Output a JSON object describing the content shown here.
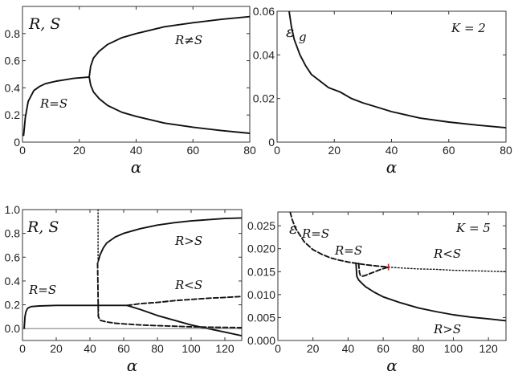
{
  "chart_data": [
    {
      "type": "line",
      "xlabel": "α",
      "xlim": [
        0,
        80
      ],
      "ylim": [
        0,
        1.0
      ],
      "xticks": [
        0,
        20,
        40,
        60,
        80
      ],
      "yticks": [
        0,
        0.2,
        0.4,
        0.6,
        0.8
      ],
      "ytick_labels": [
        "0",
        "0.2",
        "0.4",
        "0.6",
        "0.8"
      ],
      "annotations": [
        "R, S",
        "R=S",
        "R≠S"
      ],
      "series": [
        {
          "style": "solid",
          "x": [
            0.4,
            1,
            2,
            4,
            6,
            8,
            10,
            12,
            15,
            18,
            21,
            23.5
          ],
          "y": [
            0.05,
            0.18,
            0.3,
            0.38,
            0.41,
            0.43,
            0.44,
            0.45,
            0.46,
            0.47,
            0.475,
            0.48
          ]
        },
        {
          "style": "solid",
          "x": [
            23.5,
            24,
            25,
            27,
            30,
            35,
            40,
            50,
            60,
            70,
            80
          ],
          "y": [
            0.48,
            0.56,
            0.62,
            0.67,
            0.72,
            0.77,
            0.8,
            0.85,
            0.88,
            0.905,
            0.925
          ]
        },
        {
          "style": "solid",
          "x": [
            23.5,
            24,
            25,
            27,
            30,
            35,
            40,
            50,
            60,
            70,
            80
          ],
          "y": [
            0.48,
            0.42,
            0.37,
            0.32,
            0.27,
            0.22,
            0.19,
            0.14,
            0.11,
            0.085,
            0.065
          ]
        }
      ]
    },
    {
      "type": "line",
      "xlabel": "α",
      "xlim": [
        0,
        80
      ],
      "ylim": [
        0,
        0.06
      ],
      "xticks": [
        0,
        20,
        40,
        60,
        80
      ],
      "yticks": [
        0,
        0.02,
        0.04,
        0.06
      ],
      "ytick_labels": [
        "0",
        "0.02",
        "0.04",
        "0.06"
      ],
      "annotations": [
        "ε",
        "g",
        "K = 2"
      ],
      "series": [
        {
          "style": "solid",
          "x": [
            4.2,
            5,
            6,
            8,
            10,
            12,
            15,
            18,
            22,
            26,
            30,
            35,
            40,
            50,
            60,
            70,
            80
          ],
          "y": [
            0.06,
            0.053,
            0.047,
            0.04,
            0.035,
            0.031,
            0.028,
            0.025,
            0.023,
            0.02,
            0.018,
            0.016,
            0.014,
            0.011,
            0.0092,
            0.0078,
            0.0066
          ]
        }
      ]
    },
    {
      "type": "line",
      "xlabel": "α",
      "xlim": [
        0,
        130
      ],
      "ylim": [
        -0.1,
        1.0
      ],
      "xticks": [
        0,
        20,
        40,
        60,
        80,
        100,
        120
      ],
      "yticks": [
        0,
        0.2,
        0.4,
        0.6,
        0.8,
        1.0
      ],
      "ytick_labels": [
        "0.0",
        "0.2",
        "0.4",
        "0.6",
        "0.8",
        "1.0"
      ],
      "annotations": [
        "R, S",
        "R=S",
        "R>S",
        "R<S"
      ],
      "series": [
        {
          "style": "solid",
          "x": [
            1,
            1.5,
            2,
            3,
            5,
            10,
            20,
            30,
            40,
            50,
            62
          ],
          "y": [
            0.0,
            0.1,
            0.14,
            0.17,
            0.185,
            0.19,
            0.195,
            0.195,
            0.195,
            0.195,
            0.195
          ]
        },
        {
          "style": "solid",
          "x": [
            62,
            70,
            80,
            90,
            100,
            110,
            120,
            130
          ],
          "y": [
            0.195,
            0.16,
            0.11,
            0.07,
            0.03,
            0.0,
            -0.03,
            -0.06
          ]
        },
        {
          "style": "dashed",
          "x": [
            62,
            70,
            80,
            90,
            100,
            110,
            120,
            130
          ],
          "y": [
            0.195,
            0.21,
            0.22,
            0.235,
            0.245,
            0.255,
            0.262,
            0.27
          ]
        },
        {
          "style": "solid",
          "x": [
            45,
            46,
            48,
            50,
            55,
            60,
            70,
            80,
            90,
            100,
            110,
            120,
            130
          ],
          "y": [
            0.57,
            0.62,
            0.68,
            0.72,
            0.77,
            0.8,
            0.84,
            0.87,
            0.89,
            0.905,
            0.915,
            0.925,
            0.93
          ]
        },
        {
          "style": "dashed",
          "x": [
            44.5,
            45,
            46,
            50,
            55,
            60,
            70,
            80,
            90,
            100,
            110,
            120,
            130
          ],
          "y": [
            0.55,
            0.1,
            0.07,
            0.055,
            0.045,
            0.04,
            0.03,
            0.025,
            0.02,
            0.015,
            0.012,
            0.01,
            0.008
          ]
        },
        {
          "style": "dotted",
          "x": [
            44.8,
            44.8
          ],
          "y": [
            1.0,
            0.55
          ]
        },
        {
          "style": "dotted",
          "x": [
            44.8,
            44.8
          ],
          "y": [
            0.195,
            0.1
          ]
        },
        {
          "style": "thin",
          "x": [
            0,
            130
          ],
          "y": [
            0,
            0
          ]
        }
      ]
    },
    {
      "type": "line",
      "xlabel": "α",
      "xlim": [
        0,
        130
      ],
      "ylim": [
        0,
        0.028
      ],
      "xticks": [
        0,
        20,
        40,
        60,
        80,
        100,
        120
      ],
      "yticks": [
        0,
        0.005,
        0.01,
        0.015,
        0.02,
        0.025
      ],
      "ytick_labels": [
        "0.000",
        "0.005",
        "0.010",
        "0.015",
        "0.020",
        "0.025"
      ],
      "annotations": [
        "ε",
        "g",
        "K = 5",
        "R=S",
        "R<S",
        "R>S"
      ],
      "series": [
        {
          "style": "dashed",
          "x": [
            6,
            8,
            10,
            15,
            20,
            25,
            30,
            35,
            40,
            45,
            50,
            55,
            63
          ],
          "y": [
            0.0295,
            0.0265,
            0.0245,
            0.0215,
            0.0198,
            0.0188,
            0.018,
            0.0175,
            0.0171,
            0.0168,
            0.0165,
            0.0163,
            0.016
          ]
        },
        {
          "style": "dotted",
          "x": [
            63,
            70,
            80,
            90,
            100,
            110,
            120,
            130
          ],
          "y": [
            0.016,
            0.0158,
            0.0156,
            0.0155,
            0.0153,
            0.0152,
            0.0151,
            0.015
          ]
        },
        {
          "style": "solid",
          "x": [
            44.5,
            45,
            46,
            48,
            50,
            55,
            60,
            70,
            80,
            90,
            100,
            110,
            120,
            130
          ],
          "y": [
            0.0168,
            0.014,
            0.0132,
            0.0124,
            0.0117,
            0.0105,
            0.0095,
            0.0082,
            0.0071,
            0.0063,
            0.0056,
            0.0051,
            0.0047,
            0.0043
          ]
        },
        {
          "style": "dashed",
          "x": [
            46,
            46.5,
            47,
            48,
            50,
            54,
            58,
            63
          ],
          "y": [
            0.0168,
            0.0148,
            0.0142,
            0.014,
            0.0142,
            0.0148,
            0.0154,
            0.016
          ]
        },
        {
          "style": "marker",
          "x": [
            63
          ],
          "y": [
            0.016
          ],
          "color": "#e01010"
        }
      ]
    }
  ]
}
